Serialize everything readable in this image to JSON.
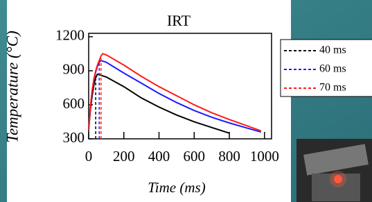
{
  "chart_data": {
    "type": "line",
    "title": "IRT",
    "x_label": "Time (ms)",
    "y_label": "Temperature (°C)",
    "x": [
      0,
      10,
      20,
      30,
      40,
      50,
      60,
      70,
      80,
      100,
      200,
      300,
      400,
      500,
      600,
      700,
      800,
      900,
      980
    ],
    "series": [
      {
        "name": "40 ms",
        "color": "#000000",
        "dashed_x": 40,
        "values": [
          380,
          560,
          680,
          780,
          840,
          870,
          865,
          860,
          855,
          845,
          760,
          660,
          580,
          510,
          450,
          400,
          350,
          null,
          null
        ]
      },
      {
        "name": "60 ms",
        "color": "#1a1aff",
        "dashed_x": 60,
        "values": [
          380,
          580,
          720,
          820,
          890,
          940,
          975,
          990,
          985,
          975,
          880,
          790,
          700,
          620,
          550,
          490,
          440,
          395,
          360
        ]
      },
      {
        "name": "70 ms",
        "color": "#ff1a1a",
        "dashed_x": 70,
        "values": [
          380,
          590,
          730,
          830,
          900,
          950,
          990,
          1030,
          1050,
          1040,
          950,
          850,
          760,
          680,
          600,
          530,
          470,
          415,
          370
        ]
      }
    ],
    "xlim": [
      0,
      1040
    ],
    "ylim": [
      300,
      1230
    ],
    "xticks": [
      0,
      200,
      400,
      600,
      800,
      1000
    ],
    "yticks": [
      300,
      600,
      900,
      1200
    ]
  }
}
